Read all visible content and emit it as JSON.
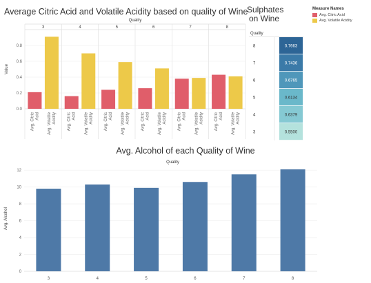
{
  "chart_data": [
    {
      "type": "bar",
      "title": "Average Citric Acid and Volatile Acidity based on quality of Wine",
      "column_header": "Quality",
      "ylabel": "Value",
      "categories": [
        "3",
        "4",
        "5",
        "6",
        "7",
        "8"
      ],
      "measures": [
        "Avg. Citric Acid",
        "Avg. Volatile Acidity"
      ],
      "series": [
        {
          "name": "Avg. Citric Acid",
          "color": "#e05e6a",
          "values": [
            0.21,
            0.16,
            0.24,
            0.26,
            0.38,
            0.43
          ]
        },
        {
          "name": "Avg. Volatile Acidity",
          "color": "#edc949",
          "values": [
            0.91,
            0.7,
            0.59,
            0.51,
            0.39,
            0.41
          ]
        }
      ],
      "ylim": [
        0,
        1.0
      ],
      "yticks": [
        "0.0",
        "0.2",
        "0.4",
        "0.6",
        "0.8"
      ],
      "ytick_values": [
        0,
        0.2,
        0.4,
        0.6,
        0.8
      ],
      "x_tick_labels": [
        "Avg. Citric Acid",
        "Avg. Volatile Acidity"
      ],
      "grid": true
    },
    {
      "type": "heatmap",
      "title": "Sulphates on Wine",
      "row_header": "Quality",
      "rows": [
        "8",
        "7",
        "6",
        "5",
        "4",
        "3"
      ],
      "values": [
        "0.7663",
        "0.7436",
        "0.6765",
        "0.6134",
        "0.6379",
        "0.5500"
      ],
      "value_numbers": [
        0.7663,
        0.7436,
        0.6765,
        0.6134,
        0.6379,
        0.55
      ],
      "colors": [
        "#2d6596",
        "#3b7aa8",
        "#4f97ba",
        "#6ab8ca",
        "#85c9d3",
        "#b4e2dd"
      ]
    },
    {
      "type": "bar",
      "title": "Avg. Alcohol of each Quality of Wine",
      "xlabel": "Quality",
      "ylabel": "Avg. Alcohol",
      "categories": [
        "3",
        "4",
        "5",
        "6",
        "7",
        "8"
      ],
      "values": [
        9.8,
        10.3,
        9.9,
        10.6,
        11.5,
        12.1
      ],
      "color": "#4e79a7",
      "ylim": [
        0,
        12.5
      ],
      "yticks": [
        "0",
        "2",
        "4",
        "6",
        "8",
        "10",
        "12"
      ],
      "ytick_values": [
        0,
        2,
        4,
        6,
        8,
        10,
        12
      ],
      "grid": true
    }
  ],
  "legend": {
    "title": "Measure Names",
    "items": [
      {
        "label": "Avg. Citric Acid",
        "color": "#e05e6a"
      },
      {
        "label": "Avg. Volatile Acidity",
        "color": "#edc949"
      }
    ]
  }
}
